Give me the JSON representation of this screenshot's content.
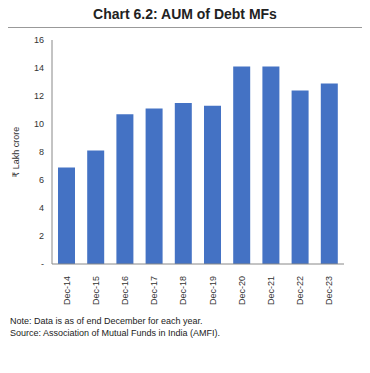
{
  "chart_data": {
    "type": "bar",
    "title": "Chart 6.2: AUM of Debt MFs",
    "y_label": "₹ Lakh crore",
    "categories": [
      "Dec-14",
      "Dec-15",
      "Dec-16",
      "Dec-17",
      "Dec-18",
      "Dec-19",
      "Dec-20",
      "Dec-21",
      "Dec-22",
      "Dec-23"
    ],
    "values": [
      6.9,
      8.1,
      10.7,
      11.1,
      11.5,
      11.3,
      14.1,
      14.1,
      12.4,
      12.9
    ],
    "color": "#4472c4",
    "ylim": [
      0,
      16
    ],
    "yticks": [
      {
        "value": 0,
        "label": "-"
      },
      2,
      4,
      6,
      8,
      10,
      12,
      14,
      16
    ],
    "grid": false,
    "note": "Note: Data is as of end December for each year.",
    "source": "Source: Association of Mutual Funds in India (AMFI)."
  }
}
